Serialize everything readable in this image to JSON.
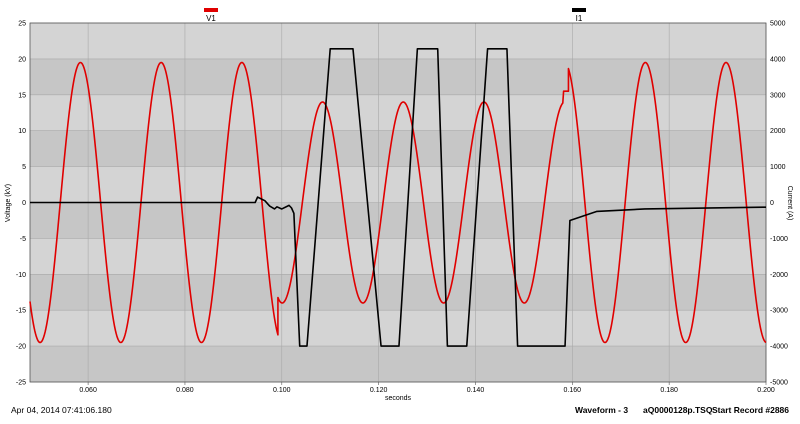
{
  "chart_data": {
    "type": "line",
    "xlabel": "seconds",
    "ylabel": "Voltage (kV)",
    "y2label": "Current (A)",
    "xlim": [
      0.048,
      0.2
    ],
    "ylim": [
      -25,
      25
    ],
    "y2lim": [
      -5000,
      5000
    ],
    "x_ticks": [
      0.06,
      0.08,
      0.1,
      0.12,
      0.14,
      0.16,
      0.18,
      0.2
    ],
    "x_tick_labels": [
      "0.060",
      "0.080",
      "0.100",
      "0.120",
      "0.140",
      "0.160",
      "0.180",
      "0.200"
    ],
    "y_ticks": [
      25,
      20,
      15,
      10,
      5,
      0,
      -5,
      -10,
      -15,
      -20,
      -25
    ],
    "y2_ticks": [
      5000,
      4000,
      3000,
      2000,
      1000,
      0,
      -1000,
      -2000,
      -3000,
      -4000,
      -5000
    ],
    "grid": true,
    "legend": "top",
    "series": [
      {
        "name": "V1",
        "color": "#e00000",
        "axis": "left",
        "segments": [
          {
            "x0": 0.048,
            "x1": 0.0992,
            "amplitude": 19.5,
            "frequency": 60,
            "phase_zero": 0.05425
          },
          {
            "x0": 0.0992,
            "x1": 0.1592,
            "amplitude": 14.0,
            "frequency": 60,
            "phase_zero": 0.10425
          },
          {
            "x0": 0.1592,
            "x1": 0.2,
            "amplitude": 19.5,
            "frequency": 60,
            "phase_zero": 0.15425
          }
        ],
        "spike": {
          "x": 0.1587,
          "y": 15.5
        }
      },
      {
        "name": "I1",
        "color": "#000000",
        "axis": "right",
        "x": [
          0.048,
          0.0945,
          0.095,
          0.0965,
          0.0975,
          0.0985,
          0.099,
          0.1,
          0.1015,
          0.102,
          0.1025,
          0.1037,
          0.1052,
          0.11,
          0.1147,
          0.1205,
          0.1242,
          0.128,
          0.1322,
          0.1342,
          0.1382,
          0.1425,
          0.1465,
          0.1487,
          0.1527,
          0.1585,
          0.1595,
          0.165,
          0.175,
          0.2
        ],
        "y": [
          0,
          0,
          150,
          50,
          -100,
          -180,
          -120,
          -180,
          -80,
          -150,
          -300,
          -4000,
          -4000,
          4280,
          4280,
          -4000,
          -4000,
          4280,
          4280,
          -4000,
          -4000,
          4280,
          4280,
          -4000,
          -4000,
          -4000,
          -500,
          -250,
          -180,
          -130
        ]
      }
    ]
  },
  "footer": {
    "timestamp": "Apr 04, 2014 07:41:06.180",
    "waveform": "Waveform - 3",
    "file": "aQ0000128p.TSQ",
    "record": "Start Record #2886"
  }
}
